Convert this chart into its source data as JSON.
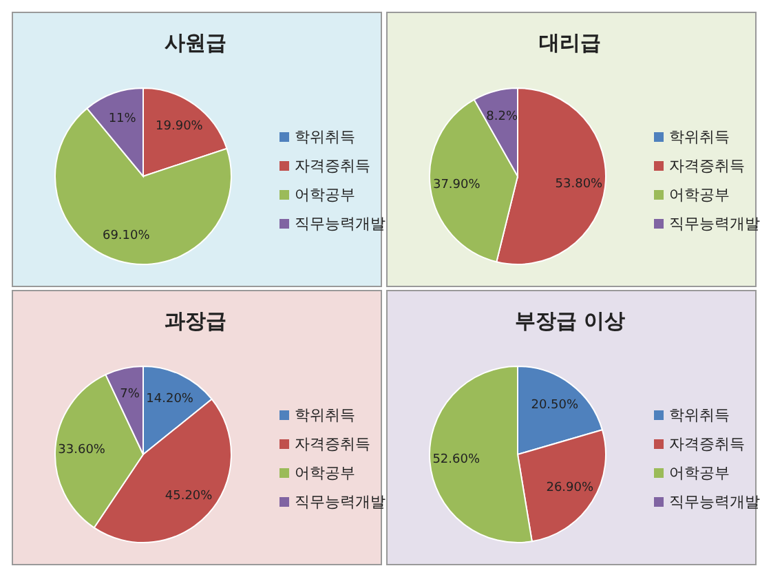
{
  "chart_data": [
    {
      "type": "pie",
      "title": "사원급",
      "categories": [
        "학위취득",
        "자격증취득",
        "어학공부",
        "직무능력개발"
      ],
      "values": [
        0,
        19.9,
        69.1,
        11
      ],
      "value_labels": [
        null,
        "19.90%",
        "69.10%",
        "11%"
      ],
      "colors": [
        "#4f81bd",
        "#c0504d",
        "#9bbb59",
        "#8064a2"
      ],
      "legend": "right"
    },
    {
      "type": "pie",
      "title": "대리급",
      "categories": [
        "학위취득",
        "자격증취득",
        "어학공부",
        "직무능력개발"
      ],
      "values": [
        0,
        53.8,
        37.9,
        8.2
      ],
      "value_labels": [
        null,
        "53.80%",
        "37.90%",
        "8.2%"
      ],
      "colors": [
        "#4f81bd",
        "#c0504d",
        "#9bbb59",
        "#8064a2"
      ],
      "legend": "right"
    },
    {
      "type": "pie",
      "title": "과장급",
      "categories": [
        "학위취득",
        "자격증취득",
        "어학공부",
        "직무능력개발"
      ],
      "values": [
        14.2,
        45.2,
        33.6,
        7
      ],
      "value_labels": [
        "14.20%",
        "45.20%",
        "33.60%",
        "7%"
      ],
      "colors": [
        "#4f81bd",
        "#c0504d",
        "#9bbb59",
        "#8064a2"
      ],
      "legend": "right"
    },
    {
      "type": "pie",
      "title": "부장급 이상",
      "categories": [
        "학위취득",
        "자격증취득",
        "어학공부",
        "직무능력개발"
      ],
      "values": [
        20.5,
        26.9,
        52.6,
        0
      ],
      "value_labels": [
        "20.50%",
        "26.90%",
        "52.60%",
        null
      ],
      "colors": [
        "#4f81bd",
        "#c0504d",
        "#9bbb59",
        "#8064a2"
      ],
      "legend": "right"
    }
  ]
}
